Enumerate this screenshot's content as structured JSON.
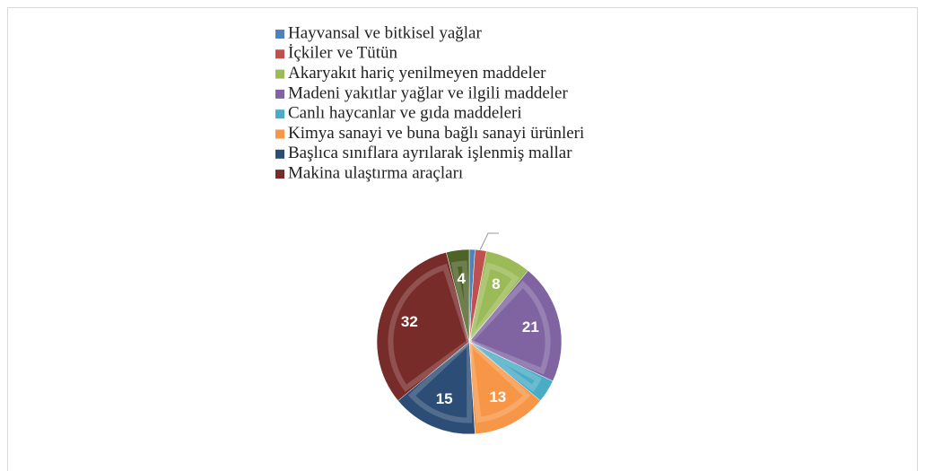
{
  "chart_data": {
    "type": "pie",
    "categories": [
      "Hayvansal  ve bitkisel yağlar",
      "İçkiler ve Tütün",
      "Akaryakıt hariç yenilmeyen maddeler",
      "Madeni yakıtlar yağlar ve ilgili maddeler",
      "Canlı haycanlar ve gıda maddeleri",
      "Kimya sanayi ve buna bağlı sanayi ürünleri",
      "Başlıca sınıflara ayrılarak işlenmiş mallar",
      "Makina ulaştırma araçları",
      null
    ],
    "values": [
      1,
      2,
      8,
      21,
      4,
      13,
      15,
      32,
      4
    ],
    "value_labels": [
      null,
      null,
      "8",
      "21",
      null,
      "13",
      "15",
      "32",
      "4"
    ],
    "colors": [
      "#4f81bd",
      "#c0504d",
      "#9bbb59",
      "#8064a2",
      "#4bacc6",
      "#f79646",
      "#2c4d75",
      "#772c2a",
      "#4f6228"
    ],
    "legend": "top"
  }
}
